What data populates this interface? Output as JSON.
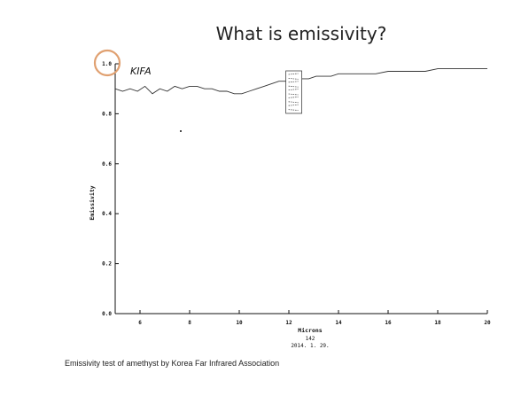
{
  "slide": {
    "title": "What is emissivity?",
    "caption": "Emissivity test of amethyst by Korea Far Infrared Association",
    "highlight_color": "#e0a070"
  },
  "chart_data": {
    "type": "line",
    "title": "",
    "xlabel": "Microns",
    "ylabel": "Emissivity",
    "xlim": [
      5,
      20
    ],
    "ylim": [
      0.0,
      1.0
    ],
    "x_ticks": [
      6,
      8,
      10,
      12,
      14,
      16,
      18,
      20
    ],
    "y_ticks": [
      0.0,
      0.2,
      0.4,
      0.6,
      0.8,
      1.0
    ],
    "y_tick_labels": [
      "0.0",
      "0.2",
      "0.4",
      "0.6",
      "0.8",
      "1.0"
    ],
    "logo": "KIFA",
    "footer": [
      "142",
      "2014.  1.  29."
    ],
    "highlight": "circle around 1.0 tick",
    "series": [
      {
        "x": [
          5.0,
          5.3,
          5.6,
          5.9,
          6.2,
          6.5,
          6.8,
          7.1,
          7.4,
          7.7,
          8.0,
          8.3,
          8.6,
          8.9,
          9.2,
          9.5,
          9.8,
          10.1,
          10.4,
          10.7,
          11.0,
          11.3,
          11.6,
          11.9,
          12.2,
          12.5,
          12.8,
          13.1,
          13.4,
          13.7,
          14.0,
          14.5,
          15.0,
          15.5,
          16.0,
          16.5,
          17.0,
          17.5,
          18.0,
          18.5,
          19.0,
          19.5,
          20.0
        ],
        "y": [
          0.9,
          0.89,
          0.9,
          0.89,
          0.91,
          0.88,
          0.9,
          0.89,
          0.91,
          0.9,
          0.91,
          0.91,
          0.9,
          0.9,
          0.89,
          0.89,
          0.88,
          0.88,
          0.89,
          0.9,
          0.91,
          0.92,
          0.93,
          0.93,
          0.93,
          0.94,
          0.94,
          0.95,
          0.95,
          0.95,
          0.96,
          0.96,
          0.96,
          0.96,
          0.97,
          0.97,
          0.97,
          0.97,
          0.98,
          0.98,
          0.98,
          0.98,
          0.98
        ]
      }
    ]
  }
}
